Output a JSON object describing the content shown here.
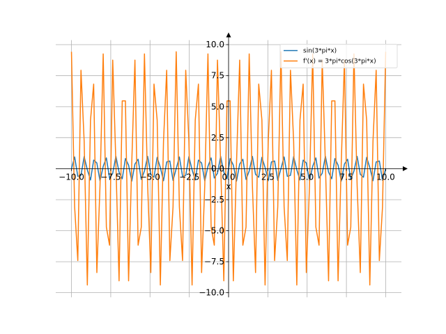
{
  "chart_data": {
    "type": "line",
    "xlabel": "x",
    "x": [
      -10,
      -9.798,
      -9.596,
      -9.394,
      -9.192,
      -8.99,
      -8.788,
      -8.586,
      -8.384,
      -8.182,
      -7.98,
      -7.778,
      -7.576,
      -7.374,
      -7.172,
      -6.97,
      -6.768,
      -6.566,
      -6.364,
      -6.162,
      -5.96,
      -5.758,
      -5.556,
      -5.354,
      -5.152,
      -4.949,
      -4.747,
      -4.545,
      -4.343,
      -4.141,
      -3.939,
      -3.737,
      -3.535,
      -3.333,
      -3.131,
      -2.929,
      -2.727,
      -2.525,
      -2.323,
      -2.121,
      -1.919,
      -1.717,
      -1.515,
      -1.313,
      -1.111,
      -0.909,
      -0.707,
      -0.505,
      -0.303,
      -0.101,
      0.101,
      0.303,
      0.505,
      0.707,
      0.909,
      1.111,
      1.313,
      1.515,
      1.717,
      1.919,
      2.121,
      2.323,
      2.525,
      2.727,
      2.929,
      3.131,
      3.333,
      3.535,
      3.737,
      3.939,
      4.141,
      4.343,
      4.545,
      4.747,
      4.949,
      5.152,
      5.354,
      5.556,
      5.758,
      5.96,
      6.162,
      6.364,
      6.566,
      6.768,
      6.97,
      7.172,
      7.374,
      7.576,
      7.778,
      7.98,
      8.182,
      8.384,
      8.586,
      8.788,
      8.99,
      9.192,
      9.394,
      9.596,
      9.798,
      10
    ],
    "series": [
      {
        "name": "sin(3*pi*x)",
        "color": "#1f77b4",
        "values": [
          0,
          0.945,
          -0.618,
          -0.541,
          0.972,
          -0.095,
          -0.91,
          0.69,
          0.458,
          -0.99,
          0.189,
          0.866,
          -0.756,
          -0.372,
          0.999,
          -0.282,
          -0.815,
          0.815,
          0.282,
          -0.999,
          0.372,
          0.756,
          -0.866,
          -0.189,
          0.99,
          -0.458,
          -0.69,
          0.91,
          0.095,
          -0.972,
          0.541,
          0.618,
          -0.945,
          0,
          0.945,
          -0.618,
          -0.541,
          0.972,
          -0.095,
          -0.91,
          0.69,
          0.458,
          -0.99,
          0.189,
          0.866,
          -0.756,
          -0.372,
          0.999,
          -0.282,
          -0.815,
          0.815,
          0.282,
          -0.999,
          0.372,
          0.756,
          -0.866,
          -0.189,
          0.99,
          -0.458,
          -0.69,
          0.91,
          0.095,
          -0.972,
          0.541,
          0.618,
          -0.945,
          0,
          0.945,
          -0.618,
          -0.541,
          0.972,
          -0.095,
          -0.91,
          0.69,
          0.458,
          -0.99,
          0.189,
          0.866,
          -0.756,
          -0.372,
          0.999,
          -0.282,
          -0.815,
          0.815,
          0.282,
          -0.999,
          0.372,
          0.756,
          -0.866,
          -0.189,
          0.99,
          -0.458,
          -0.69,
          0.91,
          0.095,
          -0.972,
          0.541,
          0.618,
          -0.945,
          0
        ]
      },
      {
        "name": "f'(x) = 3*pi*cos(3*pi*x)",
        "color": "#ff7f0e",
        "values": [
          9.425,
          -3.083,
          -7.409,
          7.929,
          2.222,
          -9.383,
          3.915,
          6.82,
          -8.377,
          -1.341,
          9.254,
          -4.712,
          -6.172,
          8.75,
          0.449,
          -9.043,
          5.467,
          5.467,
          -9.043,
          0.449,
          8.75,
          -6.172,
          -4.712,
          9.254,
          -1.341,
          -8.377,
          6.82,
          3.915,
          -9.383,
          2.222,
          7.929,
          -7.409,
          -3.083,
          9.425,
          -3.083,
          -7.409,
          7.929,
          2.222,
          -9.383,
          3.915,
          6.82,
          -8.377,
          -1.341,
          9.254,
          -4.712,
          -6.172,
          8.75,
          0.449,
          -9.043,
          5.467,
          5.467,
          -9.043,
          0.449,
          8.75,
          -6.172,
          -4.712,
          9.254,
          -1.341,
          -8.377,
          6.82,
          3.915,
          -9.383,
          2.222,
          7.929,
          -7.409,
          -3.083,
          9.425,
          -3.083,
          -7.409,
          7.929,
          2.222,
          -9.383,
          3.915,
          6.82,
          -8.377,
          -1.341,
          9.254,
          -4.712,
          -6.172,
          8.75,
          0.449,
          -9.043,
          5.467,
          5.467,
          -9.043,
          0.449,
          8.75,
          -6.172,
          -4.712,
          9.254,
          -1.341,
          -8.377,
          6.82,
          3.915,
          -9.383,
          2.222,
          7.929,
          -7.409,
          -3.083,
          9.425
        ]
      }
    ],
    "xlim": [
      -11,
      11
    ],
    "ylim": [
      -10.367,
      10.367
    ],
    "xticks": [
      {
        "value": -10,
        "label": "−10.0"
      },
      {
        "value": -7.5,
        "label": "−7.5"
      },
      {
        "value": -5,
        "label": "−5.0"
      },
      {
        "value": -2.5,
        "label": "−2.5"
      },
      {
        "value": 0,
        "label": "0.0"
      },
      {
        "value": 2.5,
        "label": "2.5"
      },
      {
        "value": 5,
        "label": "5.0"
      },
      {
        "value": 7.5,
        "label": "7.5"
      },
      {
        "value": 10,
        "label": "10.0"
      }
    ],
    "yticks": [
      {
        "value": -10,
        "label": "−10.0"
      },
      {
        "value": -7.5,
        "label": "−7.5"
      },
      {
        "value": -5,
        "label": "−5.0"
      },
      {
        "value": -2.5,
        "label": "−2.5"
      },
      {
        "value": 0,
        "label": "0.0"
      },
      {
        "value": 2.5,
        "label": "2.5"
      },
      {
        "value": 5,
        "label": "5.0"
      },
      {
        "value": 7.5,
        "label": "7.5"
      },
      {
        "value": 10,
        "label": "10.0"
      }
    ],
    "grid": true,
    "legend": "upper right"
  }
}
